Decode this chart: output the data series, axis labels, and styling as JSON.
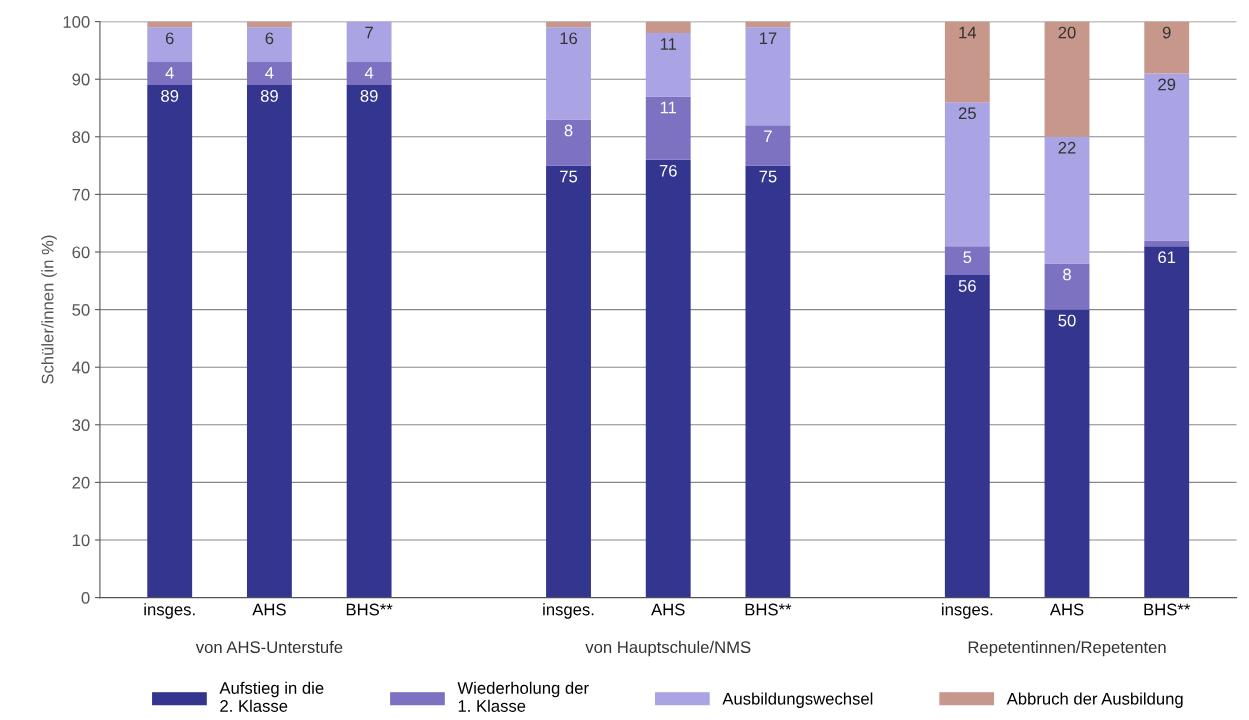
{
  "chart_data": {
    "type": "bar",
    "stacked": true,
    "ylabel": "Schüler/innen (in %)",
    "categories": [
      "insges.",
      "AHS",
      "BHS**",
      "insges.",
      "AHS",
      "BHS**",
      "insges.",
      "AHS",
      "BHS**"
    ],
    "series": [
      {
        "name": "Aufstieg in die\n2. Klasse",
        "color": "#34358f",
        "values": [
          89,
          89,
          89,
          75,
          76,
          75,
          56,
          50,
          61
        ],
        "value_labels": [
          "89",
          "89",
          "89",
          "75",
          "76",
          "75",
          "56",
          "50",
          "61"
        ]
      },
      {
        "name": "Wiederholung der\n1. Klasse",
        "color": "#7d72c2",
        "values": [
          4,
          4,
          4,
          8,
          11,
          7,
          5,
          8,
          1
        ],
        "value_labels": [
          "4",
          "4",
          "4",
          "8",
          "11",
          "7",
          "5",
          "8",
          null
        ]
      },
      {
        "name": "Ausbildungswechsel",
        "color": "#aaa4e4",
        "values": [
          6,
          6,
          7,
          16,
          11,
          17,
          25,
          22,
          29
        ],
        "value_labels": [
          "6",
          "6",
          "7",
          "16",
          "11",
          "17",
          "25",
          "22",
          "29"
        ]
      },
      {
        "name": "Abbruch der Ausbildung",
        "color": "#c8978c",
        "values": [
          1,
          1,
          0,
          1,
          2,
          1,
          14,
          20,
          9
        ],
        "value_labels": [
          null,
          null,
          null,
          null,
          null,
          null,
          "14",
          "20",
          "9"
        ]
      }
    ],
    "annotations": [
      "von AHS-Unterstufe",
      "von Hauptschule/NMS",
      "Repetentinnen/Repetenten"
    ],
    "ylim": [
      0,
      100
    ],
    "yticks": [
      0,
      10,
      20,
      30,
      40,
      50,
      60,
      70,
      80,
      90,
      100
    ],
    "grid": "y",
    "legend": "bottom"
  }
}
